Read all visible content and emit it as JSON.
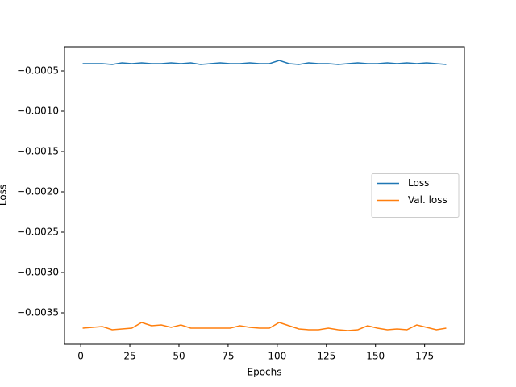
{
  "chart_data": {
    "type": "line",
    "xlabel": "Epochs",
    "ylabel": "Loss",
    "x": [
      1,
      6,
      11,
      16,
      21,
      26,
      31,
      36,
      41,
      46,
      51,
      56,
      61,
      66,
      71,
      76,
      81,
      86,
      91,
      96,
      101,
      106,
      111,
      116,
      121,
      126,
      131,
      136,
      141,
      146,
      151,
      156,
      161,
      166,
      171,
      176,
      181,
      186
    ],
    "series": [
      {
        "name": "Loss",
        "color": "#1f77b4",
        "values": [
          -0.00041,
          -0.00041,
          -0.00041,
          -0.00042,
          -0.0004,
          -0.00041,
          -0.0004,
          -0.00041,
          -0.00041,
          -0.0004,
          -0.00041,
          -0.0004,
          -0.00042,
          -0.00041,
          -0.0004,
          -0.00041,
          -0.00041,
          -0.0004,
          -0.00041,
          -0.00041,
          -0.00037,
          -0.00041,
          -0.00042,
          -0.0004,
          -0.00041,
          -0.00041,
          -0.00042,
          -0.00041,
          -0.0004,
          -0.00041,
          -0.00041,
          -0.0004,
          -0.00041,
          -0.0004,
          -0.00041,
          -0.0004,
          -0.00041,
          -0.00042
        ]
      },
      {
        "name": "Val. loss",
        "color": "#ff7f0e",
        "values": [
          -0.00369,
          -0.00368,
          -0.00367,
          -0.00371,
          -0.0037,
          -0.00369,
          -0.00362,
          -0.00366,
          -0.00365,
          -0.00368,
          -0.00365,
          -0.00369,
          -0.00369,
          -0.00369,
          -0.00369,
          -0.00369,
          -0.00366,
          -0.00368,
          -0.00369,
          -0.00369,
          -0.00362,
          -0.00366,
          -0.0037,
          -0.00371,
          -0.00371,
          -0.00369,
          -0.00371,
          -0.00372,
          -0.00371,
          -0.00366,
          -0.00369,
          -0.00371,
          -0.0037,
          -0.00371,
          -0.00365,
          -0.00368,
          -0.00371,
          -0.00369
        ]
      }
    ],
    "xlim": [
      -8.25,
      195.25
    ],
    "xticks": [
      0,
      25,
      50,
      75,
      100,
      125,
      150,
      175
    ],
    "ylim": [
      -0.00389,
      -0.0002
    ],
    "yticks": [
      {
        "value": -0.0005,
        "label": "−0.0005"
      },
      {
        "value": -0.001,
        "label": "−0.0010"
      },
      {
        "value": -0.0015,
        "label": "−0.0015"
      },
      {
        "value": -0.002,
        "label": "−0.0020"
      },
      {
        "value": -0.0025,
        "label": "−0.0025"
      },
      {
        "value": -0.003,
        "label": "−0.0030"
      },
      {
        "value": -0.0035,
        "label": "−0.0035"
      }
    ],
    "legend": "center right",
    "grid": false
  }
}
